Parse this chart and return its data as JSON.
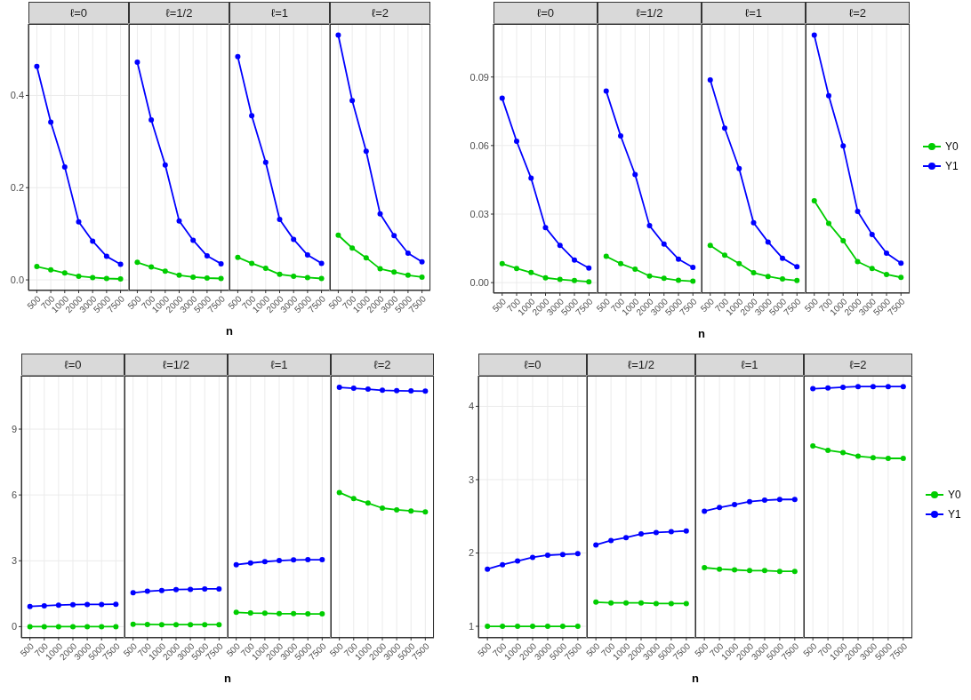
{
  "chart_data": [
    {
      "type": "line",
      "title": "ℓ=0",
      "categories": [
        "500",
        "700",
        "1000",
        "2000",
        "3000",
        "5000",
        "7500"
      ],
      "ylim": [
        -0.023,
        0.555
      ],
      "yticks": [
        {
          "value": 0,
          "label": "0.0"
        },
        {
          "value": 0.2,
          "label": "0.2"
        },
        {
          "value": 0.4,
          "label": "0.4"
        }
      ],
      "grid": true,
      "marker": "circle",
      "series": [
        {
          "color": "#00cd00",
          "values": [
            0.029,
            0.022,
            0.015,
            0.008,
            0.005,
            0.003,
            0.002
          ]
        },
        {
          "color": "#0000ff",
          "values": [
            0.463,
            0.342,
            0.245,
            0.126,
            0.084,
            0.051,
            0.034
          ]
        }
      ]
    },
    {
      "type": "line",
      "title": "ℓ=1/2",
      "xlabel": "n",
      "categories": [
        "500",
        "700",
        "1000",
        "2000",
        "3000",
        "5000",
        "7500"
      ],
      "ylim": [
        -0.023,
        0.555
      ],
      "yticks": [
        0,
        0.2,
        0.4
      ],
      "grid": true,
      "marker": "circle",
      "tick_labels": "x",
      "series": [
        {
          "color": "#00cd00",
          "values": [
            0.038,
            0.028,
            0.019,
            0.01,
            0.006,
            0.004,
            0.003
          ]
        },
        {
          "color": "#0000ff",
          "values": [
            0.472,
            0.347,
            0.249,
            0.128,
            0.086,
            0.052,
            0.035
          ]
        }
      ]
    },
    {
      "type": "line",
      "title": "ℓ=1",
      "categories": [
        "500",
        "700",
        "1000",
        "2000",
        "3000",
        "5000",
        "7500"
      ],
      "ylim": [
        -0.023,
        0.555
      ],
      "yticks": [
        0,
        0.2,
        0.4
      ],
      "grid": true,
      "marker": "circle",
      "tick_labels": "x",
      "series": [
        {
          "color": "#00cd00",
          "values": [
            0.049,
            0.036,
            0.025,
            0.012,
            0.008,
            0.005,
            0.003
          ]
        },
        {
          "color": "#0000ff",
          "values": [
            0.484,
            0.356,
            0.255,
            0.131,
            0.088,
            0.054,
            0.036
          ]
        }
      ]
    },
    {
      "type": "line",
      "title": "ℓ=2",
      "categories": [
        "500",
        "700",
        "1000",
        "2000",
        "3000",
        "5000",
        "7500"
      ],
      "ylim": [
        -0.023,
        0.555
      ],
      "yticks": [
        0,
        0.2,
        0.4
      ],
      "grid": true,
      "marker": "circle",
      "tick_labels": "x",
      "series": [
        {
          "color": "#00cd00",
          "values": [
            0.097,
            0.069,
            0.048,
            0.024,
            0.017,
            0.01,
            0.006
          ]
        },
        {
          "color": "#0000ff",
          "values": [
            0.531,
            0.389,
            0.279,
            0.143,
            0.096,
            0.058,
            0.039
          ]
        }
      ]
    },
    {
      "type": "line",
      "title": "ℓ=0",
      "categories": [
        "500",
        "700",
        "1000",
        "2000",
        "3000",
        "5000",
        "7500"
      ],
      "ylim": [
        -0.0046,
        0.1132
      ],
      "yticks": [
        {
          "value": 0,
          "label": "0.00"
        },
        {
          "value": 0.03,
          "label": "0.03"
        },
        {
          "value": 0.06,
          "label": "0.06"
        },
        {
          "value": 0.09,
          "label": "0.09"
        }
      ],
      "grid": true,
      "marker": "circle",
      "series": [
        {
          "color": "#00cd00",
          "values": [
            0.0083,
            0.0062,
            0.0044,
            0.0021,
            0.0014,
            0.0009,
            0.0004
          ]
        },
        {
          "color": "#0000ff",
          "values": [
            0.0807,
            0.0619,
            0.0457,
            0.0241,
            0.0163,
            0.0099,
            0.0064
          ]
        }
      ]
    },
    {
      "type": "line",
      "title": "ℓ=1/2",
      "xlabel": "n",
      "categories": [
        "500",
        "700",
        "1000",
        "2000",
        "3000",
        "5000",
        "7500"
      ],
      "ylim": [
        -0.0046,
        0.1132
      ],
      "yticks": [
        0,
        0.03,
        0.06,
        0.09
      ],
      "grid": true,
      "marker": "circle",
      "tick_labels": "x",
      "series": [
        {
          "color": "#00cd00",
          "values": [
            0.0115,
            0.0083,
            0.0059,
            0.0029,
            0.0019,
            0.001,
            0.0006
          ]
        },
        {
          "color": "#0000ff",
          "values": [
            0.0838,
            0.0642,
            0.0473,
            0.0249,
            0.0169,
            0.0103,
            0.0067
          ]
        }
      ]
    },
    {
      "type": "line",
      "title": "ℓ=1",
      "categories": [
        "500",
        "700",
        "1000",
        "2000",
        "3000",
        "5000",
        "7500"
      ],
      "ylim": [
        -0.0046,
        0.1132
      ],
      "yticks": [
        0,
        0.03,
        0.06,
        0.09
      ],
      "grid": true,
      "marker": "circle",
      "tick_labels": "x",
      "series": [
        {
          "color": "#00cd00",
          "values": [
            0.0163,
            0.012,
            0.0083,
            0.0043,
            0.0027,
            0.0016,
            0.0009
          ]
        },
        {
          "color": "#0000ff",
          "values": [
            0.0887,
            0.0676,
            0.0499,
            0.0262,
            0.0178,
            0.0107,
            0.007
          ]
        }
      ]
    },
    {
      "type": "line",
      "title": "ℓ=2",
      "categories": [
        "500",
        "700",
        "1000",
        "2000",
        "3000",
        "5000",
        "7500"
      ],
      "ylim": [
        -0.0046,
        0.1132
      ],
      "yticks": [
        0,
        0.03,
        0.06,
        0.09
      ],
      "grid": true,
      "marker": "circle",
      "tick_labels": "x",
      "legend": "right",
      "series": [
        {
          "name": "Y0",
          "color": "#00cd00",
          "values": [
            0.0358,
            0.0259,
            0.0183,
            0.0092,
            0.0062,
            0.0036,
            0.0023
          ]
        },
        {
          "name": "Y1",
          "color": "#0000ff",
          "values": [
            0.1083,
            0.0818,
            0.0598,
            0.0312,
            0.0211,
            0.0129,
            0.0085
          ]
        }
      ]
    },
    {
      "type": "line",
      "title": "ℓ=0",
      "categories": [
        "500",
        "700",
        "1000",
        "2000",
        "3000",
        "5000",
        "7500"
      ],
      "ylim": [
        -0.51,
        11.43
      ],
      "yticks": [
        0,
        3,
        6,
        9
      ],
      "grid": true,
      "marker": "circle",
      "series": [
        {
          "color": "#00cd00",
          "values": [
            0.0,
            0.0,
            0.0,
            0.0,
            0.0,
            0.0,
            0.0
          ]
        },
        {
          "color": "#0000ff",
          "values": [
            0.92,
            0.95,
            0.98,
            1.0,
            1.01,
            1.01,
            1.02
          ]
        }
      ]
    },
    {
      "type": "line",
      "title": "ℓ=1/2",
      "xlabel": "n",
      "categories": [
        "500",
        "700",
        "1000",
        "2000",
        "3000",
        "5000",
        "7500"
      ],
      "ylim": [
        -0.51,
        11.43
      ],
      "yticks": [
        0,
        3,
        6,
        9
      ],
      "grid": true,
      "marker": "circle",
      "tick_labels": "x",
      "series": [
        {
          "color": "#00cd00",
          "values": [
            0.11,
            0.1,
            0.09,
            0.09,
            0.09,
            0.09,
            0.09
          ]
        },
        {
          "color": "#0000ff",
          "values": [
            1.54,
            1.61,
            1.65,
            1.69,
            1.7,
            1.72,
            1.72
          ]
        }
      ]
    },
    {
      "type": "line",
      "title": "ℓ=1",
      "categories": [
        "500",
        "700",
        "1000",
        "2000",
        "3000",
        "5000",
        "7500"
      ],
      "ylim": [
        -0.51,
        11.43
      ],
      "yticks": [
        0,
        3,
        6,
        9
      ],
      "grid": true,
      "marker": "circle",
      "tick_labels": "x",
      "series": [
        {
          "color": "#00cd00",
          "values": [
            0.65,
            0.62,
            0.61,
            0.59,
            0.59,
            0.58,
            0.58
          ]
        },
        {
          "color": "#0000ff",
          "values": [
            2.82,
            2.9,
            2.96,
            3.01,
            3.04,
            3.05,
            3.05
          ]
        }
      ]
    },
    {
      "type": "line",
      "title": "ℓ=2",
      "categories": [
        "500",
        "700",
        "1000",
        "2000",
        "3000",
        "5000",
        "7500"
      ],
      "ylim": [
        -0.51,
        11.43
      ],
      "yticks": [
        0,
        3,
        6,
        9
      ],
      "grid": true,
      "marker": "circle",
      "tick_labels": "x",
      "series": [
        {
          "color": "#00cd00",
          "values": [
            6.11,
            5.83,
            5.63,
            5.4,
            5.32,
            5.27,
            5.23
          ]
        },
        {
          "color": "#0000ff",
          "values": [
            10.9,
            10.86,
            10.82,
            10.77,
            10.75,
            10.74,
            10.73
          ]
        }
      ]
    },
    {
      "type": "line",
      "title": "ℓ=0",
      "categories": [
        "500",
        "700",
        "1000",
        "2000",
        "3000",
        "5000",
        "7500"
      ],
      "ylim": [
        0.843,
        4.417
      ],
      "yticks": [
        1,
        2,
        3,
        4
      ],
      "grid": true,
      "marker": "circle",
      "series": [
        {
          "color": "#00cd00",
          "values": [
            1.0,
            1.0,
            1.0,
            1.0,
            1.0,
            1.0,
            1.0
          ]
        },
        {
          "color": "#0000ff",
          "values": [
            1.78,
            1.84,
            1.89,
            1.94,
            1.97,
            1.98,
            1.99
          ]
        }
      ]
    },
    {
      "type": "line",
      "title": "ℓ=1/2",
      "xlabel": "n",
      "categories": [
        "500",
        "700",
        "1000",
        "2000",
        "3000",
        "5000",
        "7500"
      ],
      "ylim": [
        0.843,
        4.417
      ],
      "yticks": [
        1,
        2,
        3,
        4
      ],
      "grid": true,
      "marker": "circle",
      "tick_labels": "x",
      "series": [
        {
          "color": "#00cd00",
          "values": [
            1.33,
            1.32,
            1.32,
            1.32,
            1.31,
            1.31,
            1.31
          ]
        },
        {
          "color": "#0000ff",
          "values": [
            2.11,
            2.17,
            2.21,
            2.26,
            2.28,
            2.29,
            2.3
          ]
        }
      ]
    },
    {
      "type": "line",
      "title": "ℓ=1",
      "categories": [
        "500",
        "700",
        "1000",
        "2000",
        "3000",
        "5000",
        "7500"
      ],
      "ylim": [
        0.843,
        4.417
      ],
      "yticks": [
        1,
        2,
        3,
        4
      ],
      "grid": true,
      "marker": "circle",
      "tick_labels": "x",
      "series": [
        {
          "color": "#00cd00",
          "values": [
            1.8,
            1.78,
            1.77,
            1.76,
            1.76,
            1.75,
            1.75
          ]
        },
        {
          "color": "#0000ff",
          "values": [
            2.57,
            2.62,
            2.66,
            2.7,
            2.72,
            2.73,
            2.73
          ]
        }
      ]
    },
    {
      "type": "line",
      "title": "ℓ=2",
      "categories": [
        "500",
        "700",
        "1000",
        "2000",
        "3000",
        "5000",
        "7500"
      ],
      "ylim": [
        0.843,
        4.417
      ],
      "yticks": [
        1,
        2,
        3,
        4
      ],
      "grid": true,
      "marker": "circle",
      "tick_labels": "x",
      "legend": "right",
      "series": [
        {
          "name": "Y0",
          "color": "#00cd00",
          "values": [
            3.46,
            3.4,
            3.37,
            3.32,
            3.3,
            3.29,
            3.29
          ]
        },
        {
          "name": "Y1",
          "color": "#0000ff",
          "values": [
            4.24,
            4.25,
            4.26,
            4.27,
            4.27,
            4.27,
            4.27
          ]
        }
      ]
    }
  ]
}
